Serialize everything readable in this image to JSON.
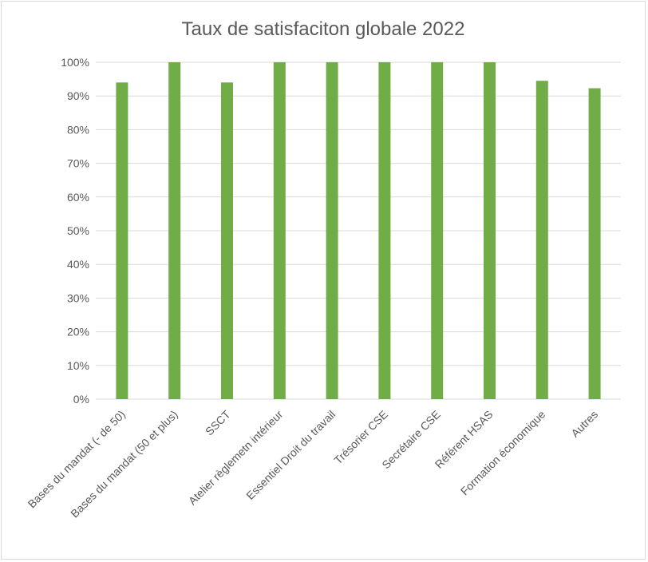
{
  "chart_data": {
    "type": "bar",
    "title": "Taux de satisfaciton globale 2022",
    "xlabel": "",
    "ylabel": "",
    "categories": [
      "Bases du mandat (- de 50)",
      "Bases du mandat (50 et plus)",
      "SSCT",
      "Atelier règlemetn intérieur",
      "Essentiel Droit du travail",
      "Trésorier CSE",
      "Secrétaire CSE",
      "Référent HSAS",
      "Formation économique",
      "Autres"
    ],
    "values": [
      0.94,
      1.0,
      0.94,
      1.0,
      1.0,
      1.0,
      1.0,
      1.0,
      0.945,
      0.923
    ],
    "ylim": [
      0,
      1
    ],
    "yticks": [
      "0%",
      "10%",
      "20%",
      "30%",
      "40%",
      "50%",
      "60%",
      "70%",
      "80%",
      "90%",
      "100%"
    ],
    "grid": true,
    "legend": "none",
    "colors": {
      "bar": "#70ad47",
      "grid": "#d9d9d9",
      "text": "#595959",
      "border": "#d9d9d9"
    }
  }
}
